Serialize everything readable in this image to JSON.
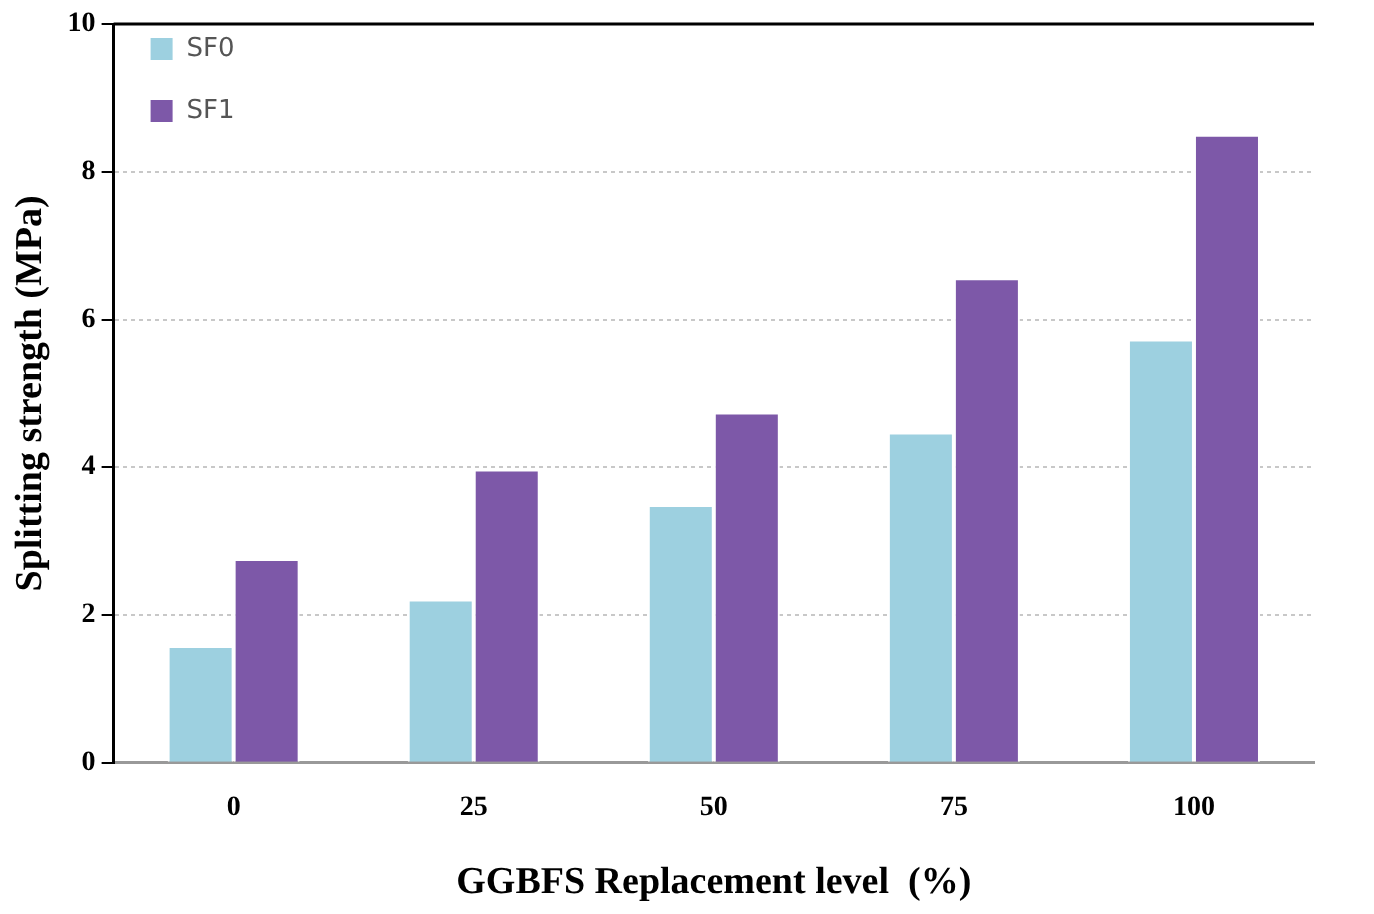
{
  "chart_data": {
    "type": "bar",
    "xlabel": "GGBFS Replacement level  (%)",
    "ylabel": "Splitting strength (MPa)",
    "categories": [
      "0",
      "25",
      "50",
      "75",
      "100"
    ],
    "series": [
      {
        "name": "SF0",
        "color": "#9dd0e0",
        "values": [
          1.58,
          2.21,
          3.49,
          4.47,
          5.73
        ]
      },
      {
        "name": "SF1",
        "color": "#7d58a8",
        "values": [
          2.76,
          3.97,
          4.74,
          6.56,
          8.5
        ]
      }
    ],
    "ylim": [
      0,
      10
    ],
    "yticks": [
      0,
      2,
      4,
      6,
      8,
      10
    ],
    "grid": "y",
    "legend": "top left"
  }
}
